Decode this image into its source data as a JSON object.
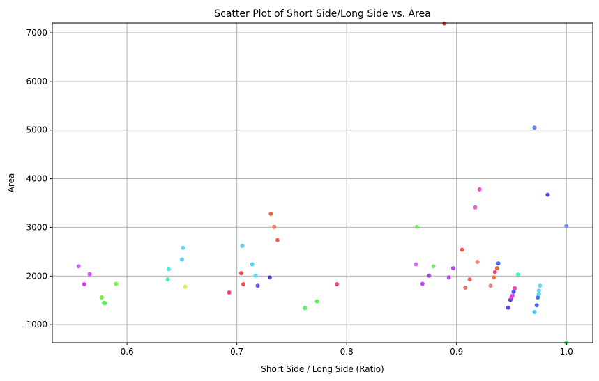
{
  "chart_data": {
    "type": "scatter",
    "title": "Scatter Plot of Short Side/Long Side vs. Area",
    "xlabel": "Short Side / Long Side (Ratio)",
    "ylabel": "Area",
    "xlim": [
      0.532,
      1.024
    ],
    "ylim": [
      630,
      7200
    ],
    "xticks": [
      0.6,
      0.7,
      0.8,
      0.9,
      1.0
    ],
    "xtick_labels": [
      "0.6",
      "0.7",
      "0.8",
      "0.9",
      "1.0"
    ],
    "yticks": [
      1000,
      2000,
      3000,
      4000,
      5000,
      6000,
      7000
    ],
    "ytick_labels": [
      "1000",
      "2000",
      "3000",
      "4000",
      "5000",
      "6000",
      "7000"
    ],
    "grid": true,
    "legend": "none",
    "points": [
      {
        "x": 0.556,
        "y": 2200,
        "color": "#cc55ee"
      },
      {
        "x": 0.561,
        "y": 1830,
        "color": "#cc33ff"
      },
      {
        "x": 0.566,
        "y": 2040,
        "color": "#cc44ee"
      },
      {
        "x": 0.577,
        "y": 1560,
        "color": "#66ee33"
      },
      {
        "x": 0.579,
        "y": 1450,
        "color": "#55ee44"
      },
      {
        "x": 0.58,
        "y": 1440,
        "color": "#55ee55"
      },
      {
        "x": 0.59,
        "y": 1840,
        "color": "#66ee33"
      },
      {
        "x": 0.637,
        "y": 1930,
        "color": "#33eeaa"
      },
      {
        "x": 0.638,
        "y": 2140,
        "color": "#33eedd"
      },
      {
        "x": 0.65,
        "y": 2340,
        "color": "#44ccee"
      },
      {
        "x": 0.651,
        "y": 2580,
        "color": "#55ccee"
      },
      {
        "x": 0.653,
        "y": 1780,
        "color": "#ccee44"
      },
      {
        "x": 0.693,
        "y": 1660,
        "color": "#ee3366"
      },
      {
        "x": 0.704,
        "y": 2060,
        "color": "#ee3344"
      },
      {
        "x": 0.705,
        "y": 2620,
        "color": "#55ccee"
      },
      {
        "x": 0.706,
        "y": 1830,
        "color": "#ee3333"
      },
      {
        "x": 0.714,
        "y": 2240,
        "color": "#33ccee"
      },
      {
        "x": 0.717,
        "y": 2010,
        "color": "#44ddee"
      },
      {
        "x": 0.719,
        "y": 1800,
        "color": "#6633ee"
      },
      {
        "x": 0.73,
        "y": 1970,
        "color": "#3333cc"
      },
      {
        "x": 0.731,
        "y": 3280,
        "color": "#ee5533"
      },
      {
        "x": 0.734,
        "y": 3010,
        "color": "#ee6644"
      },
      {
        "x": 0.737,
        "y": 2740,
        "color": "#ee5533"
      },
      {
        "x": 0.762,
        "y": 1340,
        "color": "#44ee66"
      },
      {
        "x": 0.773,
        "y": 1480,
        "color": "#44ee44"
      },
      {
        "x": 0.791,
        "y": 1830,
        "color": "#ee3355"
      },
      {
        "x": 0.863,
        "y": 2240,
        "color": "#cc55ee"
      },
      {
        "x": 0.864,
        "y": 3010,
        "color": "#66ee55"
      },
      {
        "x": 0.869,
        "y": 1840,
        "color": "#bb33ee"
      },
      {
        "x": 0.875,
        "y": 2010,
        "color": "#9933ee"
      },
      {
        "x": 0.879,
        "y": 2200,
        "color": "#66ee55"
      },
      {
        "x": 0.889,
        "y": 7190,
        "color": "#ee3344"
      },
      {
        "x": 0.893,
        "y": 1970,
        "color": "#aa33ee"
      },
      {
        "x": 0.897,
        "y": 2160,
        "color": "#aa33ee"
      },
      {
        "x": 0.905,
        "y": 2540,
        "color": "#ee4433"
      },
      {
        "x": 0.908,
        "y": 1760,
        "color": "#ee6655"
      },
      {
        "x": 0.912,
        "y": 1930,
        "color": "#ee5533"
      },
      {
        "x": 0.917,
        "y": 3410,
        "color": "#ee44cc"
      },
      {
        "x": 0.919,
        "y": 2290,
        "color": "#ee7766"
      },
      {
        "x": 0.921,
        "y": 3780,
        "color": "#ee33cc"
      },
      {
        "x": 0.931,
        "y": 1800,
        "color": "#ee7766"
      },
      {
        "x": 0.934,
        "y": 1970,
        "color": "#ee6633"
      },
      {
        "x": 0.935,
        "y": 2080,
        "color": "#ee3366"
      },
      {
        "x": 0.937,
        "y": 2160,
        "color": "#ee5533"
      },
      {
        "x": 0.938,
        "y": 2260,
        "color": "#3355ee"
      },
      {
        "x": 0.947,
        "y": 1350,
        "color": "#5533ee"
      },
      {
        "x": 0.949,
        "y": 1510,
        "color": "#3333dd"
      },
      {
        "x": 0.95,
        "y": 1560,
        "color": "#ee33aa"
      },
      {
        "x": 0.951,
        "y": 1600,
        "color": "#dd33ee"
      },
      {
        "x": 0.952,
        "y": 1680,
        "color": "#3344ee"
      },
      {
        "x": 0.953,
        "y": 1750,
        "color": "#ee3399"
      },
      {
        "x": 0.956,
        "y": 2030,
        "color": "#33eebb"
      },
      {
        "x": 0.971,
        "y": 5050,
        "color": "#5577ee"
      },
      {
        "x": 0.971,
        "y": 1260,
        "color": "#33bbee"
      },
      {
        "x": 0.973,
        "y": 1400,
        "color": "#3366ee"
      },
      {
        "x": 0.974,
        "y": 1560,
        "color": "#3366ee"
      },
      {
        "x": 0.975,
        "y": 1630,
        "color": "#44ccee"
      },
      {
        "x": 0.975,
        "y": 1700,
        "color": "#55ccee"
      },
      {
        "x": 0.976,
        "y": 1800,
        "color": "#66ccee"
      },
      {
        "x": 0.983,
        "y": 3670,
        "color": "#4433ee"
      },
      {
        "x": 1.0,
        "y": 3030,
        "color": "#7788ee"
      },
      {
        "x": 1.0,
        "y": 630,
        "color": "#33ee66"
      }
    ]
  }
}
